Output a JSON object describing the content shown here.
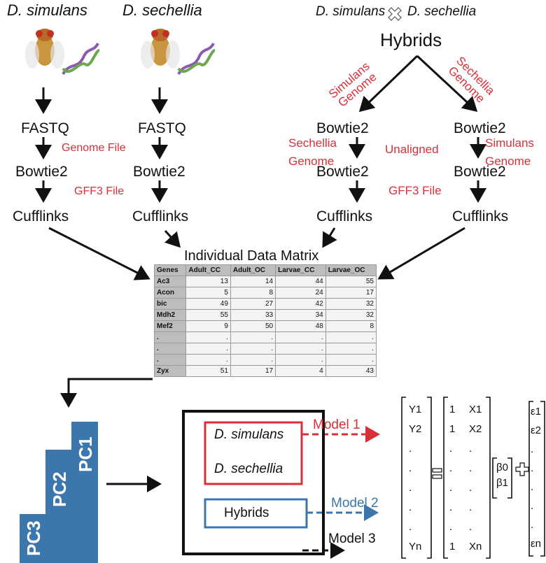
{
  "species": {
    "sim": "D. simulans",
    "sec": "D. sechellia",
    "cross_left": "D. simulans",
    "cross_right": "D. sechellia"
  },
  "hybrids": "Hybrids",
  "left_pipeline": {
    "fastq": "FASTQ",
    "bowtie": "Bowtie2",
    "cufflinks": "Cufflinks",
    "genome_file": "Genome File",
    "gff3_file": "GFF3 File"
  },
  "right_pipeline": {
    "sim_genome": [
      "Simulans",
      "Genome"
    ],
    "sec_genome": [
      "Sechellia",
      "Genome"
    ],
    "bowtie": "Bowtie2",
    "cufflinks": "Cufflinks",
    "sec_genome_side": [
      "Sechellia",
      "Genome"
    ],
    "sim_genome_side": [
      "Simulans",
      "Genome"
    ],
    "unaligned": "Unaligned",
    "gff3_file": "GFF3 File"
  },
  "matrix": {
    "title": "Individual Data Matrix",
    "headers": [
      "Genes",
      "Adult_CC",
      "Adult_OC",
      "Larvae_CC",
      "Larvae_OC"
    ],
    "rows": [
      [
        "Ac3",
        "13",
        "14",
        "44",
        "55"
      ],
      [
        "Acon",
        "5",
        "8",
        "24",
        "17"
      ],
      [
        "bic",
        "49",
        "27",
        "42",
        "32"
      ],
      [
        "Mdh2",
        "55",
        "33",
        "34",
        "32"
      ],
      [
        "Mef2",
        "9",
        "50",
        "48",
        "8"
      ],
      [
        ".",
        ".",
        ".",
        ".",
        "."
      ],
      [
        ".",
        ".",
        ".",
        ".",
        "."
      ],
      [
        ".",
        ".",
        ".",
        ".",
        "."
      ],
      [
        "Zyx",
        "51",
        "17",
        "4",
        "43"
      ]
    ]
  },
  "pcs": [
    "PC3",
    "PC2",
    "PC1"
  ],
  "models": {
    "box_sim": "D. simulans",
    "box_sec": "D. sechellia",
    "box_hyb": "Hybrids",
    "m1": "Model 1",
    "m2": "Model 2",
    "m3": "Model 3"
  },
  "equation": {
    "Y": [
      "Y1",
      "Y2",
      ".",
      ".",
      ".",
      ".",
      ".",
      "Yn"
    ],
    "Xone": [
      "1",
      "1",
      ".",
      ".",
      ".",
      ".",
      ".",
      "1"
    ],
    "Xcol": [
      "X1",
      "X2",
      ".",
      ".",
      ".",
      ".",
      ".",
      "Xn"
    ],
    "beta": [
      "β0",
      "β1"
    ],
    "eps": [
      "ε1",
      "ε2",
      ".",
      ".",
      ".",
      ".",
      ".",
      "εn"
    ]
  },
  "colors": {
    "red": "#d8303a",
    "blue": "#3b76ad",
    "black": "#111111"
  }
}
